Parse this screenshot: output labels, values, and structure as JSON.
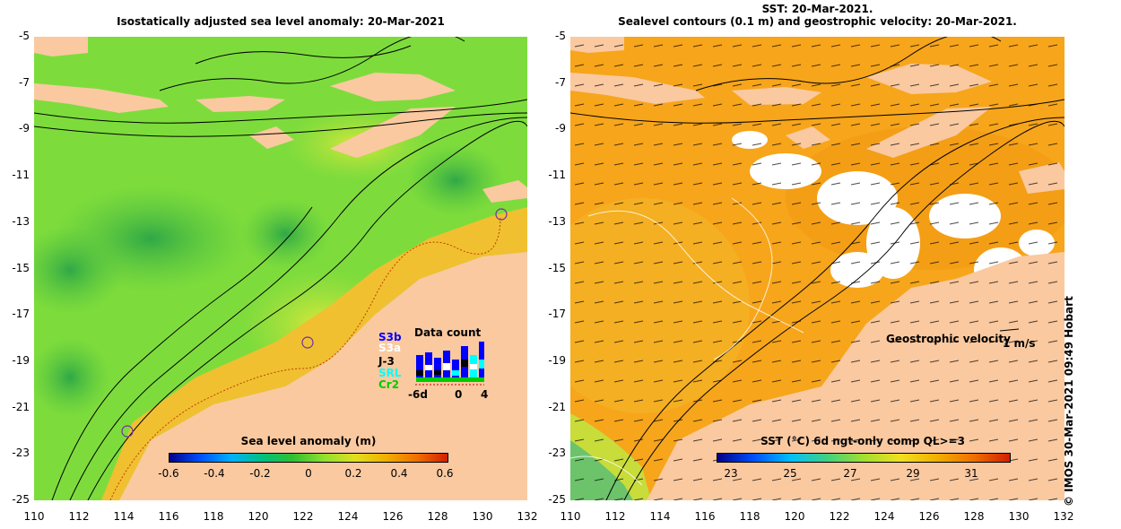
{
  "left_panel": {
    "title": "Isostatically adjusted sea level anomaly: 20-Mar-2021",
    "colorbar": {
      "title": "Sea level anomaly (m)",
      "ticks": [
        "-0.6",
        "-0.4",
        "-0.2",
        "0",
        "0.2",
        "0.4",
        "0.6"
      ],
      "range": [
        -0.6,
        0.6
      ]
    },
    "data_count": {
      "title": "Data count",
      "satellites": [
        "S3b",
        "S3a",
        "J-3",
        "SRL",
        "Cr2"
      ],
      "satellite_colors": [
        "#0000ff",
        "#ffffff",
        "#000000",
        "#00ffff",
        "#00cc00"
      ],
      "x_ticks": [
        "-6d",
        "0",
        "4"
      ]
    }
  },
  "right_panel": {
    "title_line1": "SST: 20-Mar-2021.",
    "title_line2": "Sealevel contours (0.1 m) and geostrophic velocity: 20-Mar-2021.",
    "colorbar": {
      "title": "SST (°C) 6d ngt-only comp QL>=3",
      "ticks": [
        "23",
        "25",
        "27",
        "29",
        "31"
      ],
      "range": [
        23,
        32
      ]
    },
    "velocity_legend": {
      "label": "Geostrophic velocity",
      "unit": "1 m/s"
    }
  },
  "axes": {
    "lat_ticks": [
      "-5",
      "-7",
      "-9",
      "-11",
      "-13",
      "-15",
      "-17",
      "-19",
      "-21",
      "-23",
      "-25"
    ],
    "lon_ticks": [
      "110",
      "112",
      "114",
      "116",
      "118",
      "120",
      "122",
      "124",
      "126",
      "128",
      "130",
      "132"
    ]
  },
  "copyright": "© IMOS 30-Mar-2021 09:49 Hobart",
  "colors": {
    "land": "#fac9a0",
    "sla_green": "#7ddc3c",
    "sst_orange": "#f7a51b",
    "cloud": "#ffffff"
  }
}
